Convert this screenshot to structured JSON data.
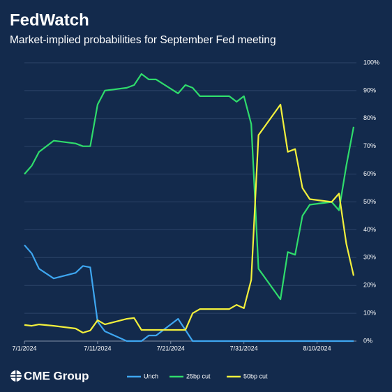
{
  "chart_data": {
    "type": "line",
    "title": "FedWatch",
    "subtitle": "Market-implied probabilities for September Fed meeting",
    "x": [
      "7/1/2024",
      "7/2/2024",
      "7/3/2024",
      "7/5/2024",
      "7/8/2024",
      "7/9/2024",
      "7/10/2024",
      "7/11/2024",
      "7/12/2024",
      "7/15/2024",
      "7/16/2024",
      "7/17/2024",
      "7/18/2024",
      "7/19/2024",
      "7/22/2024",
      "7/23/2024",
      "7/24/2024",
      "7/25/2024",
      "7/26/2024",
      "7/29/2024",
      "7/30/2024",
      "7/31/2024",
      "8/1/2024",
      "8/2/2024",
      "8/5/2024",
      "8/6/2024",
      "8/7/2024",
      "8/8/2024",
      "8/9/2024",
      "8/12/2024",
      "8/13/2024",
      "8/14/2024",
      "8/15/2024"
    ],
    "series": [
      {
        "name": "Unch",
        "color": "#3ea6f0",
        "values": [
          34.5,
          31.5,
          26,
          22.5,
          24.5,
          27,
          26.5,
          7,
          3.5,
          0,
          0,
          0,
          2,
          2,
          8,
          4,
          0,
          0,
          0,
          0,
          0,
          0,
          0,
          0,
          0,
          0,
          0,
          0,
          0,
          0,
          0,
          0,
          0
        ]
      },
      {
        "name": "25bp cut",
        "color": "#2fdc6c",
        "values": [
          60,
          63,
          68,
          72,
          71,
          70,
          70,
          85,
          90,
          91,
          92,
          96,
          94,
          94,
          89,
          92,
          91,
          88,
          88,
          88,
          86,
          88,
          78,
          26,
          15,
          32,
          31,
          45,
          49,
          50,
          47,
          63,
          77
        ]
      },
      {
        "name": "50bp cut",
        "color": "#f3f03c",
        "values": [
          5.8,
          5.5,
          6,
          5.5,
          4.5,
          3,
          3.8,
          7.5,
          6,
          8,
          8.3,
          4,
          4,
          4,
          4,
          4,
          10,
          11.5,
          11.5,
          11.5,
          13,
          11.8,
          22,
          74,
          85,
          68,
          69,
          55,
          51,
          50,
          53,
          35,
          23.5
        ]
      }
    ],
    "xlim": [
      "7/1/2024",
      "8/15/2024"
    ],
    "xticks": [
      "7/1/2024",
      "7/11/2024",
      "7/21/2024",
      "7/31/2024",
      "8/10/2024"
    ],
    "ylim": [
      0,
      100
    ],
    "yticks": [
      {
        "value": 0,
        "label": "0%"
      },
      {
        "value": 10,
        "label": "10%"
      },
      {
        "value": 20,
        "label": "20%"
      },
      {
        "value": 30,
        "label": "30%"
      },
      {
        "value": 40,
        "label": "40%"
      },
      {
        "value": 50,
        "label": "50%"
      },
      {
        "value": 60,
        "label": "60%"
      },
      {
        "value": 70,
        "label": "70%"
      },
      {
        "value": 80,
        "label": "80%"
      },
      {
        "value": 90,
        "label": "90%"
      },
      {
        "value": 100,
        "label": "100%"
      }
    ],
    "grid": true,
    "legend": "bottom"
  },
  "footer": {
    "logo": "CME Group"
  }
}
